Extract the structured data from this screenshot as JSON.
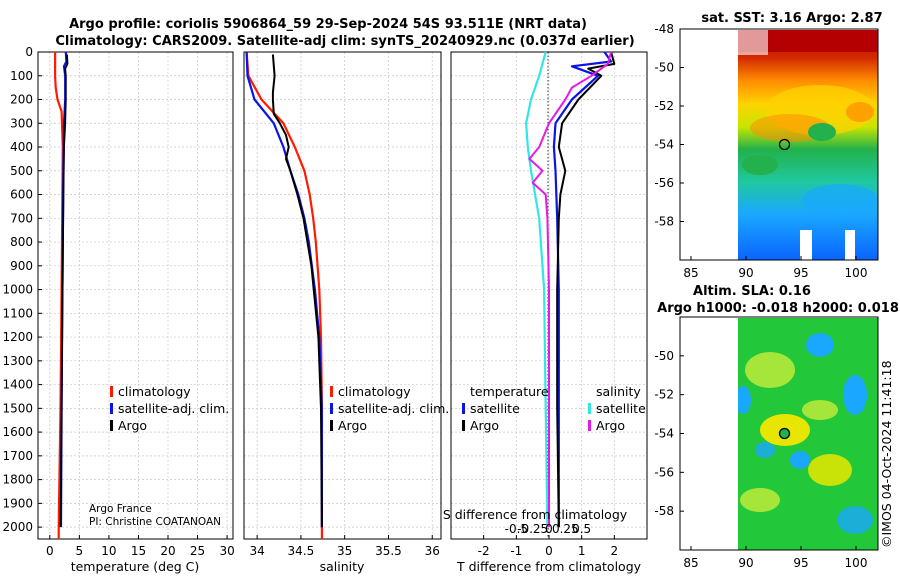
{
  "figure": {
    "title_line1": "Argo profile: coriolis 5906864_59 29-Sep-2024 54S 93.511E (NRT data)",
    "title_line2": "Climatology: CARS2009. Satellite-adj clim: synTS_20240929.nc (0.037d earlier)",
    "credit_line1": "Argo France",
    "credit_line2": "PI: Christine COATANOAN",
    "watermark": "©IMOS 04-Oct-2024 11:41:18"
  },
  "colors": {
    "climatology": "#ff1a00",
    "satellite": "#0a14e6",
    "argo": "#000000",
    "sat_salinity": "#33e6e6",
    "argo_salinity": "#e619e6"
  },
  "chart_data": [
    {
      "type": "line",
      "name": "temperature-profile",
      "xlabel": "temperature (deg C)",
      "ylabel": "",
      "xlim": [
        -2,
        31
      ],
      "ylim": [
        2050,
        0
      ],
      "xticks": [
        "0",
        "5",
        "10",
        "15",
        "20",
        "25",
        "30"
      ],
      "xtick_values": [
        0,
        5,
        10,
        15,
        20,
        25,
        30
      ],
      "yticks": [
        "0",
        "100",
        "200",
        "300",
        "400",
        "500",
        "600",
        "700",
        "800",
        "900",
        "1000",
        "1100",
        "1200",
        "1300",
        "1400",
        "1500",
        "1600",
        "1700",
        "1800",
        "1900",
        "2000"
      ],
      "ytick_values": [
        0,
        100,
        200,
        300,
        400,
        500,
        600,
        700,
        800,
        900,
        1000,
        1100,
        1200,
        1300,
        1400,
        1500,
        1600,
        1700,
        1800,
        1900,
        2000
      ],
      "legend": [
        "climatology",
        "satellite-adj. clim.",
        "Argo"
      ],
      "series": [
        {
          "name": "climatology",
          "color_key": "climatology",
          "depth": [
            0,
            100,
            150,
            200,
            250,
            400,
            700,
            1000,
            1500,
            2000,
            2050
          ],
          "values": [
            0.9,
            0.9,
            1.0,
            1.3,
            2.0,
            2.2,
            2.1,
            2.0,
            1.8,
            1.5,
            1.5
          ]
        },
        {
          "name": "satellite-adj. clim.",
          "color_key": "satellite",
          "depth": [
            0,
            40,
            60,
            100,
            200,
            300,
            500,
            800,
            1100,
            1500,
            2000
          ],
          "values": [
            2.7,
            2.8,
            2.4,
            2.6,
            2.6,
            2.4,
            2.3,
            2.2,
            2.1,
            2.0,
            1.9
          ]
        },
        {
          "name": "Argo",
          "color_key": "argo",
          "depth": [
            10,
            50,
            70,
            100,
            200,
            300,
            400,
            600,
            900,
            1200,
            1500,
            1800,
            2000
          ],
          "values": [
            2.9,
            3.0,
            2.6,
            2.7,
            2.7,
            2.6,
            2.4,
            2.3,
            2.2,
            2.1,
            2.0,
            1.9,
            1.8
          ]
        }
      ]
    },
    {
      "type": "line",
      "name": "salinity-profile",
      "xlabel": "salinity",
      "xlim": [
        33.85,
        36.1
      ],
      "ylim": [
        2050,
        0
      ],
      "xticks": [
        "34",
        "34.5",
        "35",
        "35.5",
        "36"
      ],
      "xtick_values": [
        34,
        34.5,
        35,
        35.5,
        36
      ],
      "legend": [
        "climatology",
        "satellite-adj. clim.",
        "Argo"
      ],
      "series": [
        {
          "name": "climatology",
          "color_key": "climatology",
          "depth": [
            0,
            100,
            200,
            300,
            400,
            500,
            600,
            700,
            800,
            1000,
            1200,
            1500,
            2000,
            2050
          ],
          "values": [
            33.88,
            33.9,
            34.05,
            34.3,
            34.43,
            34.54,
            34.6,
            34.64,
            34.67,
            34.71,
            34.73,
            34.74,
            34.74,
            34.74
          ]
        },
        {
          "name": "satellite-adj. clim.",
          "color_key": "satellite",
          "depth": [
            0,
            100,
            200,
            300,
            400,
            500,
            600,
            700,
            800,
            1000,
            1200,
            1500,
            2000
          ],
          "values": [
            33.88,
            33.89,
            33.97,
            34.19,
            34.3,
            34.38,
            34.47,
            34.54,
            34.59,
            34.66,
            34.71,
            34.74,
            34.74
          ]
        },
        {
          "name": "Argo",
          "color_key": "argo",
          "depth": [
            10,
            100,
            170,
            200,
            260,
            300,
            350,
            400,
            450,
            500,
            600,
            700,
            900,
            1200,
            1500,
            2000
          ],
          "values": [
            34.18,
            34.2,
            34.18,
            34.18,
            34.19,
            34.26,
            34.33,
            34.36,
            34.33,
            34.38,
            34.46,
            34.53,
            34.62,
            34.7,
            34.73,
            34.74
          ]
        }
      ]
    },
    {
      "type": "line",
      "name": "difference-profile",
      "xlabel": "T difference from climatology",
      "top_label": "S difference from climatology",
      "xlim": [
        -3,
        3
      ],
      "ylim": [
        2050,
        0
      ],
      "xticks": [
        "-2",
        "-1",
        "0",
        "1",
        "2"
      ],
      "xtick_values": [
        -2,
        -1,
        0,
        1,
        2
      ],
      "top_ticks": [
        "-0.5",
        "-0.25",
        "0",
        "0.25",
        "0.5"
      ],
      "top_tick_values": [
        -1,
        -0.5,
        0,
        0.5,
        1
      ],
      "legend_left_title": "temperature",
      "legend_right_title": "salinity",
      "legend_items": [
        "satellite",
        "Argo",
        "satellite",
        "Argo"
      ],
      "series": [
        {
          "name": "temperature satellite",
          "color_key": "satellite",
          "depth": [
            0,
            40,
            60,
            100,
            200,
            300,
            400,
            500,
            700,
            1000,
            1500,
            2000
          ],
          "values": [
            1.7,
            1.9,
            0.7,
            1.5,
            0.7,
            0.2,
            0.15,
            0.2,
            0.25,
            0.3,
            0.3,
            0.3
          ]
        },
        {
          "name": "temperature Argo",
          "color_key": "argo",
          "depth": [
            0,
            50,
            70,
            100,
            200,
            300,
            400,
            500,
            600,
            700,
            1000,
            1500,
            2000
          ],
          "values": [
            1.9,
            2.0,
            1.2,
            1.6,
            0.9,
            0.4,
            0.3,
            0.5,
            0.35,
            0.3,
            0.25,
            0.25,
            0.3
          ]
        },
        {
          "name": "salinity satellite",
          "color_key": "sat_salinity",
          "depth": [
            0,
            100,
            200,
            300,
            400,
            500,
            700,
            1000,
            1500,
            2000
          ],
          "values": [
            -0.1,
            -0.3,
            -0.55,
            -0.7,
            -0.65,
            -0.55,
            -0.3,
            -0.15,
            -0.1,
            -0.05
          ]
        },
        {
          "name": "salinity Argo",
          "color_key": "argo_salinity",
          "depth": [
            0,
            50,
            100,
            150,
            200,
            300,
            400,
            450,
            500,
            550,
            600,
            700,
            1000,
            1500,
            2000
          ],
          "values": [
            1.9,
            1.8,
            1.3,
            0.7,
            0.5,
            0.0,
            -0.3,
            -0.6,
            -0.2,
            -0.5,
            -0.1,
            -0.05,
            0.0,
            0.0,
            0.0
          ]
        }
      ]
    },
    {
      "type": "heatmap",
      "name": "sst-map",
      "title": "sat. SST: 3.16 Argo: 2.87",
      "xlim": [
        84,
        102
      ],
      "ylim": [
        -60,
        -48
      ],
      "xticks": [
        "85",
        "90",
        "95",
        "100"
      ],
      "xtick_values": [
        85,
        90,
        95,
        100
      ],
      "yticks": [
        "-48",
        "-50",
        "-52",
        "-54",
        "-56",
        "-58"
      ],
      "ytick_values": [
        -48,
        -50,
        -52,
        -54,
        -56,
        -58
      ],
      "marker": {
        "lon": 93.5,
        "lat": -54
      }
    },
    {
      "type": "heatmap",
      "name": "sla-map",
      "title_line1": "Altim. SLA: 0.16",
      "title_line2": "Argo h1000: -0.018 h2000: 0.018",
      "xlim": [
        84,
        102
      ],
      "ylim": [
        -60,
        -48
      ],
      "xticks": [
        "85",
        "90",
        "95",
        "100"
      ],
      "xtick_values": [
        85,
        90,
        95,
        100
      ],
      "yticks": [
        "-50",
        "-52",
        "-54",
        "-56",
        "-58"
      ],
      "ytick_values": [
        -50,
        -52,
        -54,
        -56,
        -58
      ],
      "marker": {
        "lon": 93.5,
        "lat": -54
      }
    }
  ]
}
